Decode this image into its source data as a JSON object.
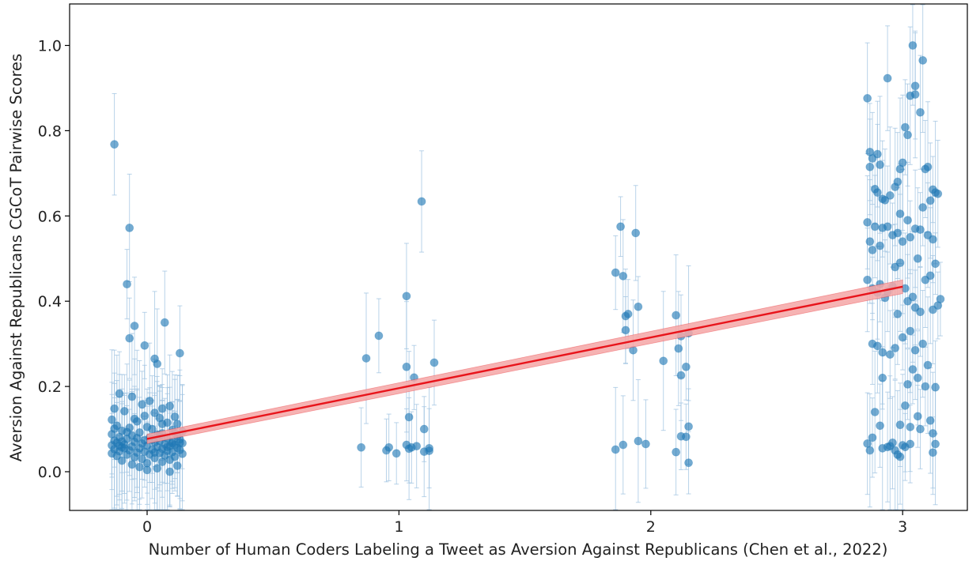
{
  "chart_data": {
    "type": "scatter",
    "title": "",
    "xlabel": "Number of Human Coders Labeling a Tweet as Aversion Against Republicans (Chen et al., 2022)",
    "ylabel": "Aversion Against Republicans CGCoT Pairwise Scores",
    "xlim": [
      -0.3,
      3.3
    ],
    "ylim": [
      -0.095,
      1.1
    ],
    "xticks": [
      0,
      1,
      2,
      3
    ],
    "yticks": [
      0.0,
      0.2,
      0.4,
      0.6,
      0.8,
      1.0
    ],
    "xtick_labels": [
      "0",
      "1",
      "2",
      "3"
    ],
    "ytick_labels": [
      "0.0",
      "0.2",
      "0.4",
      "0.6",
      "0.8",
      "1.0"
    ],
    "grid": false,
    "legend": "none",
    "colors": {
      "points": "#1f77b4",
      "errorbars": "#9cc1e0",
      "fit_line": "#e8141b",
      "ci_band": "#f4a6a6"
    },
    "fit": {
      "x": [
        0,
        3
      ],
      "y": [
        0.077,
        0.434
      ],
      "ci_halfwidth": [
        0.011,
        0.016
      ]
    },
    "series": [
      {
        "points": [
          [
            -0.13,
            0.768
          ],
          [
            -0.07,
            0.572
          ],
          [
            -0.08,
            0.44
          ],
          [
            -0.07,
            0.313
          ],
          [
            -0.05,
            0.342
          ],
          [
            0.07,
            0.35
          ],
          [
            -0.01,
            0.296
          ],
          [
            0.03,
            0.265
          ],
          [
            0.04,
            0.253
          ],
          [
            0.13,
            0.278
          ],
          [
            -0.11,
            0.183
          ],
          [
            -0.06,
            0.176
          ],
          [
            0.01,
            0.166
          ],
          [
            -0.02,
            0.158
          ],
          [
            0.09,
            0.154
          ],
          [
            0.06,
            0.148
          ],
          [
            -0.13,
            0.148
          ],
          [
            -0.09,
            0.142
          ],
          [
            0.03,
            0.138
          ],
          [
            -0.01,
            0.131
          ],
          [
            0.11,
            0.129
          ],
          [
            0.05,
            0.126
          ],
          [
            -0.14,
            0.122
          ],
          [
            -0.04,
            0.118
          ],
          [
            0.08,
            0.115
          ],
          [
            0.12,
            0.112
          ],
          [
            -0.12,
            0.108
          ],
          [
            0.0,
            0.105
          ],
          [
            -0.07,
            0.103
          ],
          [
            0.02,
            0.1
          ],
          [
            0.1,
            0.098
          ],
          [
            -0.1,
            0.096
          ],
          [
            0.14,
            0.094
          ],
          [
            -0.03,
            0.092
          ],
          [
            0.06,
            0.09
          ],
          [
            -0.14,
            0.088
          ],
          [
            0.04,
            0.087
          ],
          [
            -0.06,
            0.085
          ],
          [
            0.12,
            0.083
          ],
          [
            -0.11,
            0.081
          ],
          [
            0.01,
            0.08
          ],
          [
            0.08,
            0.078
          ],
          [
            -0.08,
            0.077
          ],
          [
            0.13,
            0.076
          ],
          [
            -0.01,
            0.074
          ],
          [
            -0.13,
            0.073
          ],
          [
            0.05,
            0.072
          ],
          [
            0.1,
            0.071
          ],
          [
            -0.05,
            0.07
          ],
          [
            0.03,
            0.069
          ],
          [
            -0.12,
            0.068
          ],
          [
            0.14,
            0.067
          ],
          [
            -0.02,
            0.066
          ],
          [
            0.07,
            0.065
          ],
          [
            -0.09,
            0.064
          ],
          [
            0.11,
            0.063
          ],
          [
            -0.14,
            0.062
          ],
          [
            0.0,
            0.061
          ],
          [
            0.09,
            0.06
          ],
          [
            -0.06,
            0.059
          ],
          [
            0.04,
            0.058
          ],
          [
            -0.1,
            0.057
          ],
          [
            0.12,
            0.056
          ],
          [
            -0.03,
            0.055
          ],
          [
            0.06,
            0.054
          ],
          [
            -0.13,
            0.053
          ],
          [
            0.02,
            0.052
          ],
          [
            0.13,
            0.051
          ],
          [
            -0.07,
            0.05
          ],
          [
            0.08,
            0.049
          ],
          [
            -0.11,
            0.048
          ],
          [
            -0.01,
            0.047
          ],
          [
            0.1,
            0.046
          ],
          [
            -0.04,
            0.045
          ],
          [
            0.05,
            0.044
          ],
          [
            -0.14,
            0.043
          ],
          [
            0.14,
            0.042
          ],
          [
            0.01,
            0.041
          ],
          [
            -0.08,
            0.04
          ],
          [
            0.07,
            0.038
          ],
          [
            -0.12,
            0.037
          ],
          [
            0.11,
            0.035
          ],
          [
            -0.05,
            0.034
          ],
          [
            0.03,
            0.032
          ],
          [
            -0.02,
            0.03
          ],
          [
            0.09,
            0.028
          ],
          [
            -0.1,
            0.026
          ],
          [
            0.06,
            0.023
          ],
          [
            0.0,
            0.02
          ],
          [
            -0.06,
            0.017
          ],
          [
            0.12,
            0.014
          ],
          [
            -0.03,
            0.011
          ],
          [
            0.04,
            0.008
          ],
          [
            -0.11,
            0.061
          ],
          [
            0.02,
            0.075
          ],
          [
            0.08,
            0.058
          ],
          [
            -0.04,
            0.079
          ],
          [
            0.13,
            0.068
          ],
          [
            -0.09,
            0.055
          ],
          [
            0.05,
            0.086
          ],
          [
            0.09,
            0.0
          ],
          [
            0.0,
            0.004
          ],
          [
            -0.08,
            0.093
          ],
          [
            0.1,
            0.067
          ],
          [
            -0.13,
            0.101
          ],
          [
            0.06,
            0.112
          ],
          [
            -0.05,
            0.124
          ],
          [
            0.03,
            0.045
          ],
          [
            0.11,
            0.091
          ],
          [
            -0.1,
            0.071
          ],
          [
            0.85,
            0.057
          ],
          [
            0.87,
            0.266
          ],
          [
            0.92,
            0.319
          ],
          [
            0.95,
            0.05
          ],
          [
            0.96,
            0.057
          ],
          [
            0.99,
            0.043
          ],
          [
            1.03,
            0.412
          ],
          [
            1.03,
            0.246
          ],
          [
            1.04,
            0.128
          ],
          [
            1.03,
            0.063
          ],
          [
            1.04,
            0.054
          ],
          [
            1.06,
            0.221
          ],
          [
            1.07,
            0.06
          ],
          [
            1.09,
            0.634
          ],
          [
            1.1,
            0.1
          ],
          [
            1.1,
            0.047
          ],
          [
            1.12,
            0.055
          ],
          [
            1.14,
            0.256
          ],
          [
            1.12,
            0.049
          ],
          [
            1.05,
            0.057
          ],
          [
            1.86,
            0.467
          ],
          [
            1.88,
            0.575
          ],
          [
            1.89,
            0.459
          ],
          [
            1.9,
            0.332
          ],
          [
            1.9,
            0.365
          ],
          [
            1.91,
            0.37
          ],
          [
            1.93,
            0.285
          ],
          [
            1.94,
            0.56
          ],
          [
            1.95,
            0.387
          ],
          [
            1.86,
            0.052
          ],
          [
            1.89,
            0.063
          ],
          [
            1.95,
            0.072
          ],
          [
            1.98,
            0.065
          ],
          [
            2.05,
            0.26
          ],
          [
            2.1,
            0.367
          ],
          [
            2.11,
            0.289
          ],
          [
            2.12,
            0.318
          ],
          [
            2.12,
            0.226
          ],
          [
            2.14,
            0.246
          ],
          [
            2.15,
            0.325
          ],
          [
            2.12,
            0.083
          ],
          [
            2.14,
            0.082
          ],
          [
            2.15,
            0.106
          ],
          [
            2.1,
            0.046
          ],
          [
            2.15,
            0.021
          ],
          [
            2.86,
            0.876
          ],
          [
            2.87,
            0.75
          ],
          [
            2.88,
            0.735
          ],
          [
            2.9,
            0.745
          ],
          [
            2.91,
            0.72
          ],
          [
            2.94,
            0.923
          ],
          [
            2.87,
            0.715
          ],
          [
            2.89,
            0.663
          ],
          [
            2.9,
            0.655
          ],
          [
            2.92,
            0.64
          ],
          [
            2.93,
            0.637
          ],
          [
            2.95,
            0.648
          ],
          [
            2.97,
            0.668
          ],
          [
            2.98,
            0.68
          ],
          [
            2.99,
            0.71
          ],
          [
            3.0,
            0.725
          ],
          [
            3.01,
            0.808
          ],
          [
            3.02,
            0.79
          ],
          [
            3.04,
            1.0
          ],
          [
            3.05,
            0.885
          ],
          [
            3.03,
            0.882
          ],
          [
            3.05,
            0.905
          ],
          [
            3.08,
            0.965
          ],
          [
            3.07,
            0.843
          ],
          [
            3.1,
            0.715
          ],
          [
            3.09,
            0.71
          ],
          [
            3.12,
            0.662
          ],
          [
            3.13,
            0.655
          ],
          [
            3.14,
            0.652
          ],
          [
            3.11,
            0.636
          ],
          [
            2.86,
            0.585
          ],
          [
            2.87,
            0.54
          ],
          [
            2.88,
            0.52
          ],
          [
            2.89,
            0.575
          ],
          [
            2.91,
            0.53
          ],
          [
            2.92,
            0.572
          ],
          [
            2.94,
            0.575
          ],
          [
            2.96,
            0.555
          ],
          [
            2.98,
            0.56
          ],
          [
            2.99,
            0.605
          ],
          [
            3.0,
            0.54
          ],
          [
            3.02,
            0.59
          ],
          [
            3.03,
            0.55
          ],
          [
            3.05,
            0.57
          ],
          [
            3.07,
            0.568
          ],
          [
            3.08,
            0.62
          ],
          [
            3.1,
            0.555
          ],
          [
            3.12,
            0.545
          ],
          [
            3.13,
            0.488
          ],
          [
            3.06,
            0.5
          ],
          [
            2.86,
            0.45
          ],
          [
            2.88,
            0.43
          ],
          [
            2.9,
            0.42
          ],
          [
            2.91,
            0.44
          ],
          [
            2.93,
            0.408
          ],
          [
            2.94,
            0.422
          ],
          [
            2.96,
            0.435
          ],
          [
            2.97,
            0.48
          ],
          [
            2.99,
            0.49
          ],
          [
            3.01,
            0.43
          ],
          [
            3.02,
            0.4
          ],
          [
            3.04,
            0.41
          ],
          [
            3.05,
            0.385
          ],
          [
            3.07,
            0.375
          ],
          [
            3.09,
            0.45
          ],
          [
            3.11,
            0.46
          ],
          [
            3.12,
            0.38
          ],
          [
            3.14,
            0.39
          ],
          [
            3.15,
            0.405
          ],
          [
            2.98,
            0.37
          ],
          [
            2.88,
            0.3
          ],
          [
            2.9,
            0.295
          ],
          [
            2.92,
            0.28
          ],
          [
            2.95,
            0.275
          ],
          [
            2.97,
            0.29
          ],
          [
            3.0,
            0.315
          ],
          [
            3.03,
            0.33
          ],
          [
            3.05,
            0.285
          ],
          [
            3.08,
            0.3
          ],
          [
            3.1,
            0.25
          ],
          [
            3.04,
            0.24
          ],
          [
            3.06,
            0.22
          ],
          [
            3.09,
            0.2
          ],
          [
            3.13,
            0.198
          ],
          [
            2.92,
            0.22
          ],
          [
            3.02,
            0.205
          ],
          [
            2.89,
            0.14
          ],
          [
            3.01,
            0.155
          ],
          [
            3.06,
            0.13
          ],
          [
            3.11,
            0.12
          ],
          [
            2.99,
            0.11
          ],
          [
            3.03,
            0.105
          ],
          [
            3.07,
            0.1
          ],
          [
            3.12,
            0.09
          ],
          [
            2.86,
            0.066
          ],
          [
            2.88,
            0.08
          ],
          [
            2.87,
            0.05
          ],
          [
            2.92,
            0.055
          ],
          [
            2.95,
            0.06
          ],
          [
            2.96,
            0.068
          ],
          [
            2.97,
            0.05
          ],
          [
            2.98,
            0.04
          ],
          [
            2.99,
            0.035
          ],
          [
            3.01,
            0.058
          ],
          [
            3.03,
            0.065
          ],
          [
            3.12,
            0.045
          ],
          [
            3.13,
            0.065
          ],
          [
            2.94,
            0.058
          ],
          [
            3.0,
            0.062
          ],
          [
            2.91,
            0.108
          ]
        ]
      }
    ]
  }
}
